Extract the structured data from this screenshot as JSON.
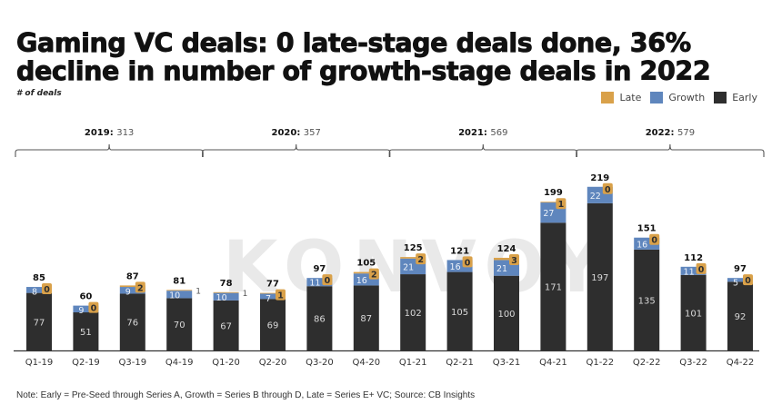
{
  "title_line1": "Gaming VC deals: 0 late-stage deals done, 36%",
  "title_line2": "decline in number of growth-stage deals in 2022",
  "subtitle": "# of deals",
  "watermark": "KONVOY",
  "note": "Note: Early = Pre-Seed through Series A, Growth = Series B through D, Late = Series E+ VC; Source: CB Insights",
  "colors": {
    "early": "#2e2e2e",
    "growth": "#5f86bd",
    "late": "#d9a14a"
  },
  "legend": [
    {
      "key": "late",
      "label": "Late"
    },
    {
      "key": "growth",
      "label": "Growth"
    },
    {
      "key": "early",
      "label": "Early"
    }
  ],
  "chart_data": {
    "type": "bar",
    "stacked": true,
    "title": "Gaming VC deals: 0 late-stage deals done, 36% decline in number of growth-stage deals in 2022",
    "ylabel": "# of deals",
    "xlabel": "",
    "ylim": [
      0,
      240
    ],
    "grid": false,
    "legend_position": "top-right",
    "categories": [
      "Q1-19",
      "Q2-19",
      "Q3-19",
      "Q4-19",
      "Q1-20",
      "Q2-20",
      "Q3-20",
      "Q4-20",
      "Q1-21",
      "Q2-21",
      "Q3-21",
      "Q4-21",
      "Q1-22",
      "Q2-22",
      "Q3-22",
      "Q4-22"
    ],
    "series": [
      {
        "name": "Early",
        "values": [
          77,
          51,
          76,
          70,
          67,
          69,
          86,
          87,
          102,
          105,
          100,
          171,
          197,
          135,
          101,
          92
        ]
      },
      {
        "name": "Growth",
        "values": [
          8,
          9,
          9,
          10,
          10,
          7,
          11,
          16,
          21,
          16,
          21,
          27,
          22,
          16,
          11,
          5
        ]
      },
      {
        "name": "Late",
        "values": [
          0,
          0,
          2,
          1,
          1,
          1,
          0,
          2,
          2,
          0,
          3,
          1,
          0,
          0,
          0,
          0
        ]
      }
    ],
    "totals": [
      85,
      60,
      87,
      81,
      78,
      77,
      97,
      105,
      125,
      121,
      124,
      199,
      219,
      151,
      112,
      97
    ],
    "year_groups": [
      {
        "year": "2019:",
        "total": "313"
      },
      {
        "year": "2020:",
        "total": "357"
      },
      {
        "year": "2021:",
        "total": "569"
      },
      {
        "year": "2022:",
        "total": "579"
      }
    ]
  }
}
